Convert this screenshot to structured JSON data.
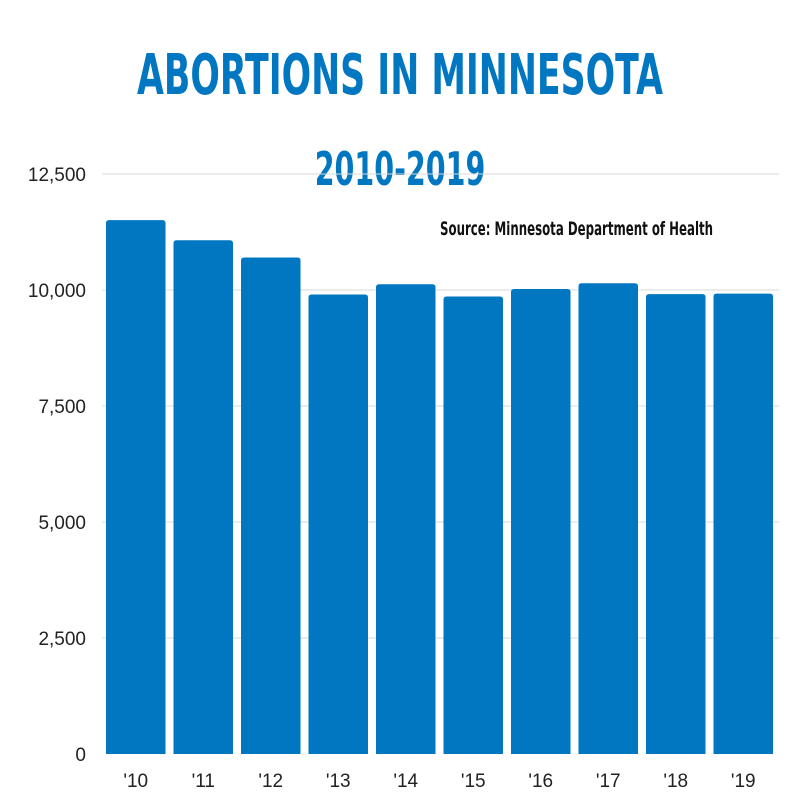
{
  "chart_data": {
    "type": "bar",
    "title": "ABORTIONS IN MINNESOTA",
    "subtitle": "2010-2019",
    "annotation": "Source: Minnesota Department of Health",
    "categories": [
      "'10",
      "'11",
      "'12",
      "'13",
      "'14",
      "'15",
      "'16",
      "'17",
      "'18",
      "'19"
    ],
    "values": [
      11505,
      11071,
      10701,
      9903,
      10123,
      9861,
      10021,
      10145,
      9910,
      9922
    ],
    "ylim": [
      0,
      12500
    ],
    "yticks": [
      0,
      2500,
      5000,
      7500,
      10000,
      12500
    ],
    "ytick_labels": [
      "0",
      "2,500",
      "5,000",
      "7,500",
      "10,000",
      "12,500"
    ],
    "xlabel": "",
    "ylabel": "",
    "grid": true,
    "bar_color": "#0077c0",
    "title_color": "#0077c0"
  }
}
